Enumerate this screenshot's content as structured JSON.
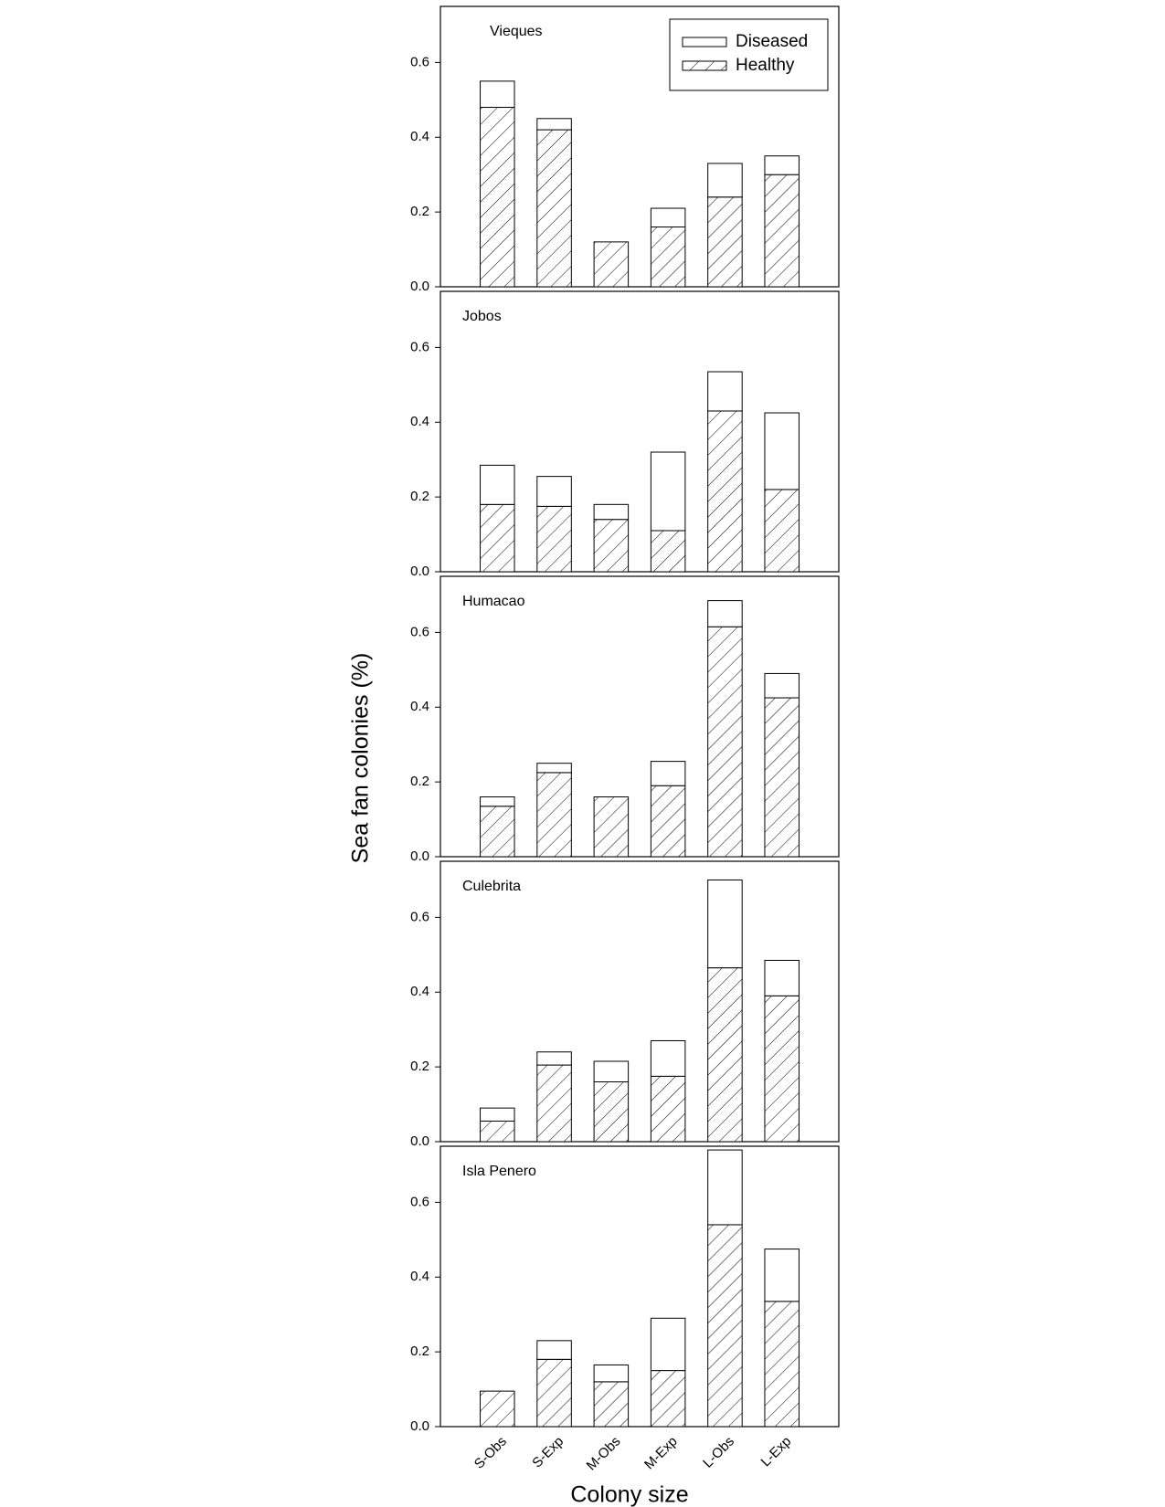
{
  "figure": {
    "y_label": "Sea fan colonies (%)",
    "x_label": "Colony size"
  },
  "chart_data": [
    {
      "type": "bar",
      "stacked": true,
      "title": "Vieques",
      "legend": "upper right",
      "series": [
        {
          "name": "Healthy",
          "hatch": true,
          "color": "#000000",
          "values": [
            0.48,
            0.42,
            0.12,
            0.16,
            0.24,
            0.3
          ]
        },
        {
          "name": "Diseased",
          "hatch": false,
          "color": "#000000",
          "values": [
            0.07,
            0.03,
            0,
            0.05,
            0.09,
            0.05
          ]
        }
      ],
      "ylim": [
        0,
        0.75
      ],
      "yticks": [
        {
          "value": 0,
          "label": "0.0"
        },
        0.2,
        0.4,
        0.6
      ]
    },
    {
      "type": "bar",
      "stacked": true,
      "title": "Jobos",
      "series": [
        {
          "hatch": true,
          "color": "#000000",
          "values": [
            0.18,
            0.175,
            0.14,
            0.11,
            0.43,
            0.22
          ]
        },
        {
          "hatch": false,
          "color": "#000000",
          "values": [
            0.105,
            0.08,
            0.04,
            0.21,
            0.105,
            0.205
          ]
        }
      ],
      "ylim": [
        0,
        0.75
      ],
      "yticks": [
        {
          "value": 0,
          "label": "0.0"
        },
        0.2,
        0.4,
        0.6
      ]
    },
    {
      "type": "bar",
      "stacked": true,
      "title": "Humacao",
      "series": [
        {
          "hatch": true,
          "color": "#000000",
          "values": [
            0.135,
            0.225,
            0.16,
            0.19,
            0.615,
            0.425
          ]
        },
        {
          "hatch": false,
          "color": "#000000",
          "values": [
            0.025,
            0.025,
            0,
            0.065,
            0.07,
            0.065
          ]
        }
      ],
      "ylim": [
        0,
        0.75
      ],
      "yticks": [
        {
          "value": 0,
          "label": "0.0"
        },
        0.2,
        0.4,
        0.6
      ]
    },
    {
      "type": "bar",
      "stacked": true,
      "title": "Culebrita",
      "series": [
        {
          "hatch": true,
          "color": "#000000",
          "values": [
            0.055,
            0.205,
            0.16,
            0.175,
            0.465,
            0.39
          ]
        },
        {
          "hatch": false,
          "color": "#000000",
          "values": [
            0.035,
            0.035,
            0.055,
            0.095,
            0.235,
            0.095
          ]
        }
      ],
      "ylim": [
        0,
        0.75
      ],
      "yticks": [
        {
          "value": 0,
          "label": "0.0"
        },
        0.2,
        0.4,
        0.6
      ]
    },
    {
      "type": "bar",
      "stacked": true,
      "title": "Isla Penero",
      "categories": [
        "S-Obs",
        "S-Exp",
        "M-Obs",
        "M-Exp",
        "L-Obs",
        "L-Exp"
      ],
      "series": [
        {
          "hatch": true,
          "color": "#000000",
          "values": [
            0.095,
            0.18,
            0.12,
            0.15,
            0.54,
            0.335
          ]
        },
        {
          "hatch": false,
          "color": "#000000",
          "values": [
            0,
            0.05,
            0.045,
            0.14,
            0.2,
            0.14
          ]
        }
      ],
      "ylim": [
        0,
        0.75
      ],
      "yticks": [
        {
          "value": 0,
          "label": "0.0"
        },
        0.2,
        0.4,
        0.6
      ]
    }
  ]
}
